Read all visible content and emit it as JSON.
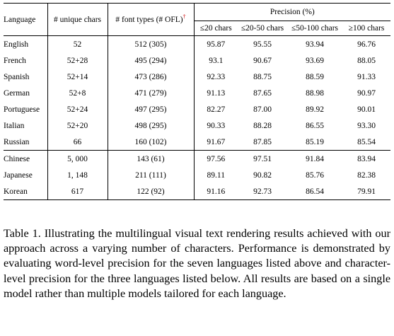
{
  "table": {
    "headers": {
      "language": "Language",
      "unique_chars": "# unique chars",
      "font_types": "# font types (# OFL)",
      "font_types_mark": "†",
      "precision": "Precision (%)",
      "precision_sub": [
        "≤20 chars",
        "≤20-50 chars",
        "≤50-100 chars",
        "≥100 chars"
      ]
    },
    "word_level_rows": [
      {
        "language": "English",
        "unique_chars": "52",
        "font_types": "512 (305)",
        "p20": "95.87",
        "p20_50": "95.55",
        "p50_100": "93.94",
        "p100": "96.76"
      },
      {
        "language": "French",
        "unique_chars": "52+28",
        "font_types": "495 (294)",
        "p20": "93.1",
        "p20_50": "90.67",
        "p50_100": "93.69",
        "p100": "88.05"
      },
      {
        "language": "Spanish",
        "unique_chars": "52+14",
        "font_types": "473 (286)",
        "p20": "92.33",
        "p20_50": "88.75",
        "p50_100": "88.59",
        "p100": "91.33"
      },
      {
        "language": "German",
        "unique_chars": "52+8",
        "font_types": "471 (279)",
        "p20": "91.13",
        "p20_50": "87.65",
        "p50_100": "88.98",
        "p100": "90.97"
      },
      {
        "language": "Portuguese",
        "unique_chars": "52+24",
        "font_types": "497 (295)",
        "p20": "82.27",
        "p20_50": "87.00",
        "p50_100": "89.92",
        "p100": "90.01"
      },
      {
        "language": "Italian",
        "unique_chars": "52+20",
        "font_types": "498 (295)",
        "p20": "90.33",
        "p20_50": "88.28",
        "p50_100": "86.55",
        "p100": "93.30"
      },
      {
        "language": "Russian",
        "unique_chars": "66",
        "font_types": "160 (102)",
        "p20": "91.67",
        "p20_50": "87.85",
        "p50_100": "85.19",
        "p100": "85.54"
      }
    ],
    "char_level_rows": [
      {
        "language": "Chinese",
        "unique_chars": "5, 000",
        "font_types": "143 (61)",
        "p20": "97.56",
        "p20_50": "97.51",
        "p50_100": "91.84",
        "p100": "83.94"
      },
      {
        "language": "Japanese",
        "unique_chars": "1, 148",
        "font_types": "211 (111)",
        "p20": "89.11",
        "p20_50": "90.82",
        "p50_100": "85.76",
        "p100": "82.38"
      },
      {
        "language": "Korean",
        "unique_chars": "617",
        "font_types": "122 (92)",
        "p20": "91.16",
        "p20_50": "92.73",
        "p50_100": "86.54",
        "p100": "79.91"
      }
    ]
  },
  "caption": "Table 1. Illustrating the multilingual visual text rendering results achieved with our approach across a varying number of characters. Performance is demonstrated by evaluating word-level precision for the seven languages listed above and character-level precision for the three languages listed below. All results are based on a single model rather than multiple models tailored for each language."
}
